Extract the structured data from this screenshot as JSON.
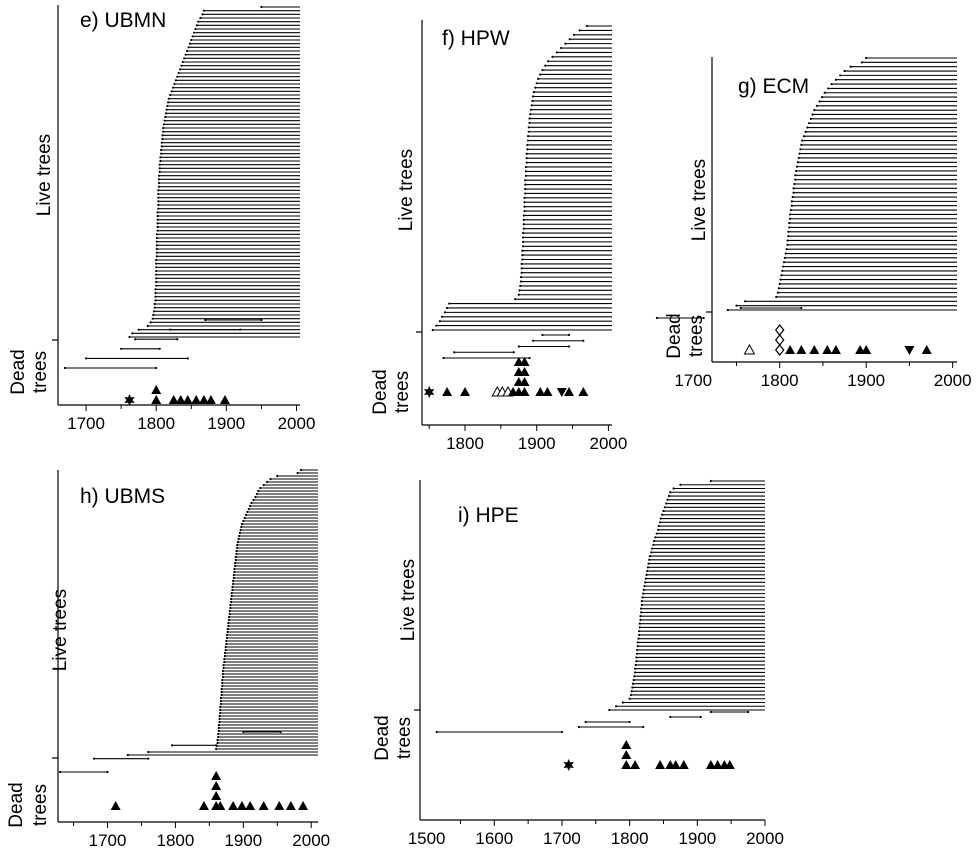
{
  "side_labels": {
    "live": "Live trees",
    "dead_line1": "Dead",
    "dead_line2": "trees"
  },
  "chart_data": [
    {
      "type": "timeline",
      "title": "e) UBMN",
      "xticks": [
        1700,
        1800,
        1900,
        2000
      ],
      "xlim": [
        1660,
        2005
      ],
      "live_series": {
        "name": "Live trees",
        "start_years": [
          1950,
          1868,
          1866,
          1863,
          1860,
          1858,
          1856,
          1854,
          1852,
          1850,
          1848,
          1846,
          1844,
          1842,
          1840,
          1838,
          1836,
          1834,
          1832,
          1830,
          1828,
          1826,
          1824,
          1822,
          1820,
          1818,
          1817,
          1816,
          1815,
          1814,
          1813,
          1812,
          1811,
          1810,
          1810,
          1809,
          1809,
          1808,
          1808,
          1807,
          1807,
          1806,
          1806,
          1805,
          1805,
          1805,
          1804,
          1804,
          1804,
          1804,
          1803,
          1803,
          1803,
          1803,
          1803,
          1803,
          1802,
          1802,
          1802,
          1802,
          1802,
          1802,
          1801,
          1801,
          1801,
          1801,
          1801,
          1801,
          1801,
          1800,
          1800,
          1800,
          1800,
          1800,
          1800,
          1800,
          1800,
          1799,
          1799,
          1799,
          1799,
          1798,
          1798,
          1797,
          1796,
          1795,
          1792,
          1788,
          1775,
          1766,
          1762
        ]
      },
      "dead_series": {
        "name": "Dead trees",
        "spans": [
          [
            1870,
            1950
          ],
          [
            1820,
            1920
          ],
          [
            1770,
            1830
          ],
          [
            1750,
            1805
          ],
          [
            1700,
            1845
          ],
          [
            1670,
            1800
          ]
        ]
      },
      "markers": [
        {
          "year": 1762,
          "symbol": "star",
          "count": 1
        },
        {
          "year": 1800,
          "symbol": "triangle",
          "count": 2
        },
        {
          "year": 1825,
          "symbol": "triangle",
          "count": 1
        },
        {
          "year": 1835,
          "symbol": "triangle",
          "count": 1
        },
        {
          "year": 1845,
          "symbol": "triangle",
          "count": 1
        },
        {
          "year": 1857,
          "symbol": "triangle",
          "count": 1
        },
        {
          "year": 1868,
          "symbol": "triangle",
          "count": 1
        },
        {
          "year": 1878,
          "symbol": "triangle",
          "count": 1
        },
        {
          "year": 1898,
          "symbol": "triangle",
          "count": 1
        }
      ]
    },
    {
      "type": "timeline",
      "title": "f) HPW",
      "xticks": [
        1800,
        1900,
        2000
      ],
      "xlim": [
        1740,
        2005
      ],
      "live_series": {
        "name": "Live trees",
        "start_years": [
          1970,
          1960,
          1952,
          1946,
          1940,
          1934,
          1928,
          1922,
          1916,
          1912,
          1908,
          1905,
          1902,
          1900,
          1898,
          1896,
          1895,
          1894,
          1893,
          1892,
          1891,
          1890,
          1890,
          1889,
          1889,
          1888,
          1888,
          1887,
          1887,
          1886,
          1886,
          1886,
          1885,
          1885,
          1885,
          1884,
          1884,
          1884,
          1884,
          1883,
          1883,
          1883,
          1883,
          1882,
          1882,
          1882,
          1882,
          1881,
          1881,
          1881,
          1881,
          1880,
          1880,
          1880,
          1879,
          1879,
          1879,
          1878,
          1878,
          1877,
          1876,
          1875,
          1870,
          1778,
          1775,
          1772,
          1768,
          1765,
          1760,
          1755
        ]
      },
      "dead_series": {
        "name": "Dead trees",
        "spans": [
          [
            1908,
            1945
          ],
          [
            1895,
            1965
          ],
          [
            1875,
            1945
          ],
          [
            1785,
            1868
          ],
          [
            1770,
            1890
          ]
        ]
      },
      "markers": [
        {
          "year": 1750,
          "symbol": "star",
          "count": 1
        },
        {
          "year": 1775,
          "symbol": "triangle",
          "count": 1
        },
        {
          "year": 1800,
          "symbol": "triangle",
          "count": 1
        },
        {
          "year": 1845,
          "symbol": "triangle-open",
          "count": 1
        },
        {
          "year": 1852,
          "symbol": "triangle-open",
          "count": 1
        },
        {
          "year": 1860,
          "symbol": "triangle-open",
          "count": 1
        },
        {
          "year": 1867,
          "symbol": "triangle",
          "count": 1
        },
        {
          "year": 1875,
          "symbol": "triangle",
          "count": 4
        },
        {
          "year": 1883,
          "symbol": "triangle",
          "count": 4
        },
        {
          "year": 1905,
          "symbol": "triangle",
          "count": 1
        },
        {
          "year": 1915,
          "symbol": "triangle",
          "count": 1
        },
        {
          "year": 1935,
          "symbol": "triangle-down",
          "count": 1
        },
        {
          "year": 1945,
          "symbol": "triangle",
          "count": 1
        },
        {
          "year": 1965,
          "symbol": "triangle",
          "count": 1
        }
      ]
    },
    {
      "type": "timeline",
      "title": "g) ECM",
      "xticks": [
        1700,
        1800,
        1900,
        2000
      ],
      "xlim": [
        1650,
        2005
      ],
      "live_series": {
        "name": "Live trees",
        "start_years": [
          1900,
          1895,
          1882,
          1875,
          1870,
          1865,
          1860,
          1856,
          1852,
          1849,
          1846,
          1843,
          1840,
          1838,
          1836,
          1834,
          1832,
          1830,
          1828,
          1826,
          1825,
          1824,
          1823,
          1822,
          1821,
          1820,
          1819,
          1818,
          1818,
          1817,
          1816,
          1816,
          1815,
          1814,
          1814,
          1813,
          1812,
          1812,
          1811,
          1811,
          1810,
          1810,
          1809,
          1809,
          1808,
          1807,
          1806,
          1805,
          1804,
          1803,
          1802,
          1801,
          1800,
          1799,
          1798,
          1796,
          1760,
          1750,
          1740
        ]
      },
      "dead_series": {
        "name": "Dead trees",
        "spans": [
          [
            1755,
            1825
          ],
          [
            1658,
            1712
          ]
        ]
      },
      "markers": [
        {
          "year": 1765,
          "symbol": "triangle-open",
          "count": 1
        },
        {
          "year": 1800,
          "symbol": "diamond-open",
          "count": 3
        },
        {
          "year": 1812,
          "symbol": "triangle",
          "count": 1
        },
        {
          "year": 1825,
          "symbol": "triangle",
          "count": 1
        },
        {
          "year": 1840,
          "symbol": "triangle",
          "count": 1
        },
        {
          "year": 1855,
          "symbol": "triangle",
          "count": 1
        },
        {
          "year": 1865,
          "symbol": "triangle",
          "count": 1
        },
        {
          "year": 1893,
          "symbol": "triangle",
          "count": 1
        },
        {
          "year": 1900,
          "symbol": "triangle",
          "count": 1
        },
        {
          "year": 1950,
          "symbol": "triangle-down",
          "count": 1
        },
        {
          "year": 1970,
          "symbol": "triangle",
          "count": 1
        }
      ]
    },
    {
      "type": "timeline",
      "title": "h) UBMS",
      "xticks": [
        1700,
        1800,
        1900,
        2000
      ],
      "xlim": [
        1630,
        2010
      ],
      "live_series": {
        "name": "Live trees",
        "start_years": [
          1985,
          1980,
          1950,
          1940,
          1935,
          1930,
          1925,
          1922,
          1920,
          1918,
          1915,
          1912,
          1910,
          1908,
          1906,
          1904,
          1902,
          1900,
          1898,
          1897,
          1896,
          1895,
          1894,
          1893,
          1892,
          1891,
          1891,
          1890,
          1890,
          1889,
          1889,
          1888,
          1888,
          1887,
          1887,
          1886,
          1886,
          1885,
          1885,
          1884,
          1884,
          1883,
          1883,
          1882,
          1882,
          1881,
          1881,
          1880,
          1880,
          1879,
          1879,
          1878,
          1878,
          1877,
          1877,
          1876,
          1876,
          1875,
          1875,
          1874,
          1874,
          1873,
          1873,
          1872,
          1872,
          1871,
          1871,
          1870,
          1870,
          1870,
          1869,
          1869,
          1869,
          1868,
          1868,
          1868,
          1867,
          1867,
          1867,
          1866,
          1866,
          1866,
          1865,
          1865,
          1865,
          1864,
          1864,
          1864,
          1863,
          1863,
          1862,
          1862,
          1861,
          1860,
          1760,
          1730
        ]
      },
      "dead_series": {
        "name": "Dead trees",
        "spans": [
          [
            1900,
            1955
          ],
          [
            1795,
            1860
          ],
          [
            1680,
            1760
          ],
          [
            1630,
            1700
          ]
        ]
      },
      "markers": [
        {
          "year": 1712,
          "symbol": "triangle",
          "count": 1
        },
        {
          "year": 1842,
          "symbol": "triangle",
          "count": 1
        },
        {
          "year": 1860,
          "symbol": "triangle",
          "count": 4
        },
        {
          "year": 1866,
          "symbol": "triangle",
          "count": 1
        },
        {
          "year": 1885,
          "symbol": "triangle",
          "count": 1
        },
        {
          "year": 1898,
          "symbol": "triangle",
          "count": 1
        },
        {
          "year": 1910,
          "symbol": "triangle",
          "count": 1
        },
        {
          "year": 1930,
          "symbol": "triangle",
          "count": 1
        },
        {
          "year": 1953,
          "symbol": "triangle",
          "count": 1
        },
        {
          "year": 1970,
          "symbol": "triangle",
          "count": 1
        },
        {
          "year": 1988,
          "symbol": "triangle",
          "count": 1
        }
      ]
    },
    {
      "type": "timeline",
      "title": "i) HPE",
      "xticks": [
        1500,
        1600,
        1700,
        1800,
        1900,
        2000
      ],
      "xlim": [
        1505,
        2000
      ],
      "live_series": {
        "name": "Live trees",
        "start_years": [
          1920,
          1875,
          1865,
          1860,
          1858,
          1856,
          1854,
          1852,
          1850,
          1848,
          1846,
          1845,
          1843,
          1842,
          1840,
          1838,
          1836,
          1835,
          1833,
          1832,
          1830,
          1829,
          1828,
          1827,
          1826,
          1825,
          1824,
          1823,
          1822,
          1821,
          1820,
          1819,
          1818,
          1818,
          1817,
          1817,
          1816,
          1816,
          1815,
          1815,
          1814,
          1814,
          1813,
          1812,
          1812,
          1811,
          1811,
          1810,
          1810,
          1809,
          1808,
          1808,
          1807,
          1806,
          1805,
          1804,
          1803,
          1802,
          1800,
          1790,
          1780,
          1770
        ]
      },
      "dead_series": {
        "name": "Dead trees",
        "spans": [
          [
            1920,
            1975
          ],
          [
            1860,
            1905
          ],
          [
            1735,
            1800
          ],
          [
            1725,
            1820
          ],
          [
            1515,
            1700
          ]
        ]
      },
      "markers": [
        {
          "year": 1710,
          "symbol": "star",
          "count": 1
        },
        {
          "year": 1795,
          "symbol": "triangle",
          "count": 3
        },
        {
          "year": 1808,
          "symbol": "triangle",
          "count": 1
        },
        {
          "year": 1845,
          "symbol": "triangle",
          "count": 1
        },
        {
          "year": 1860,
          "symbol": "triangle",
          "count": 1
        },
        {
          "year": 1868,
          "symbol": "triangle",
          "count": 1
        },
        {
          "year": 1880,
          "symbol": "triangle",
          "count": 1
        },
        {
          "year": 1920,
          "symbol": "triangle",
          "count": 1
        },
        {
          "year": 1930,
          "symbol": "triangle",
          "count": 1
        },
        {
          "year": 1940,
          "symbol": "triangle",
          "count": 1
        },
        {
          "year": 1948,
          "symbol": "triangle",
          "count": 1
        }
      ]
    }
  ]
}
